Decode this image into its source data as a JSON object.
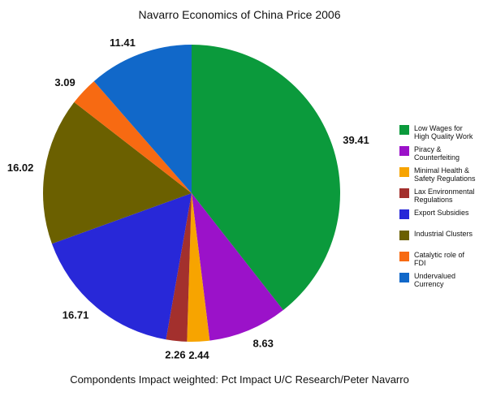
{
  "chart_data": {
    "type": "pie",
    "title": "Navarro Economics of China Price 2006",
    "subtitle": "Compondents Impact weighted: Pct Impact U/C Research/Peter Navarro",
    "categories": [
      "Low Wages for High Quality Work",
      "Piracy & Counterfeiting",
      "Minimal Health & Safety Regulations",
      "Lax Environmental Regulations",
      "Export Subsidies",
      "Industrial Clusters",
      "Catalytic role of FDI",
      "Undervalued Currency"
    ],
    "values": [
      39.41,
      8.63,
      2.44,
      2.26,
      16.71,
      16.02,
      3.09,
      11.41
    ],
    "colors": [
      "#0b9a3c",
      "#9b12c9",
      "#f7a400",
      "#a3302d",
      "#2828d8",
      "#6b6000",
      "#f76a12",
      "#1168c9"
    ],
    "legend": "right"
  }
}
